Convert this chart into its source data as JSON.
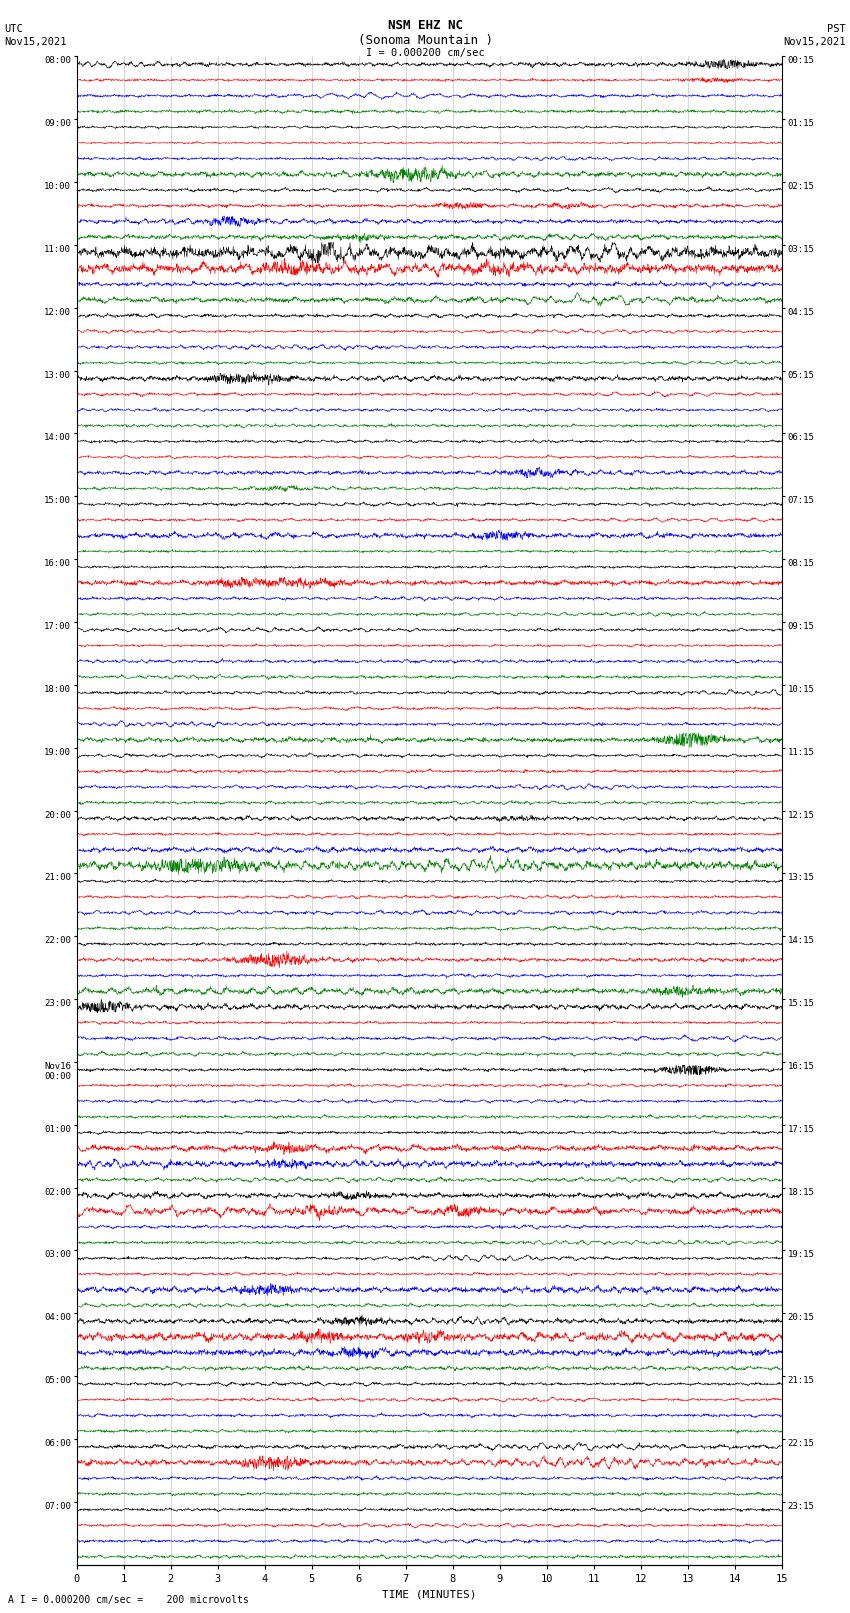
{
  "title_line1": "NSM EHZ NC",
  "title_line2": "(Sonoma Mountain )",
  "title_line3": "I = 0.000200 cm/sec",
  "left_header_line1": "UTC",
  "left_header_line2": "Nov15,2021",
  "right_header_line1": "PST",
  "right_header_line2": "Nov15,2021",
  "xlabel": "TIME (MINUTES)",
  "bottom_label": "A I = 0.000200 cm/sec =    200 microvolts",
  "trace_colors": [
    "black",
    "red",
    "blue",
    "green"
  ],
  "background_color": "white",
  "fig_width": 8.5,
  "fig_height": 16.13,
  "x_min": 0,
  "x_max": 15,
  "x_ticks": [
    0,
    1,
    2,
    3,
    4,
    5,
    6,
    7,
    8,
    9,
    10,
    11,
    12,
    13,
    14,
    15
  ],
  "utc_times": [
    "08:00",
    "09:00",
    "10:00",
    "11:00",
    "12:00",
    "13:00",
    "14:00",
    "15:00",
    "16:00",
    "17:00",
    "18:00",
    "19:00",
    "20:00",
    "21:00",
    "22:00",
    "23:00",
    "Nov16\n00:00",
    "01:00",
    "02:00",
    "03:00",
    "04:00",
    "05:00",
    "06:00",
    "07:00"
  ],
  "pst_times": [
    "00:15",
    "01:15",
    "02:15",
    "03:15",
    "04:15",
    "05:15",
    "06:15",
    "07:15",
    "08:15",
    "09:15",
    "10:15",
    "11:15",
    "12:15",
    "13:15",
    "14:15",
    "15:15",
    "16:15",
    "17:15",
    "18:15",
    "19:15",
    "20:15",
    "21:15",
    "22:15",
    "23:15"
  ],
  "num_hour_groups": 24,
  "traces_per_group": 4,
  "base_noise": 0.3,
  "seed": 12345
}
